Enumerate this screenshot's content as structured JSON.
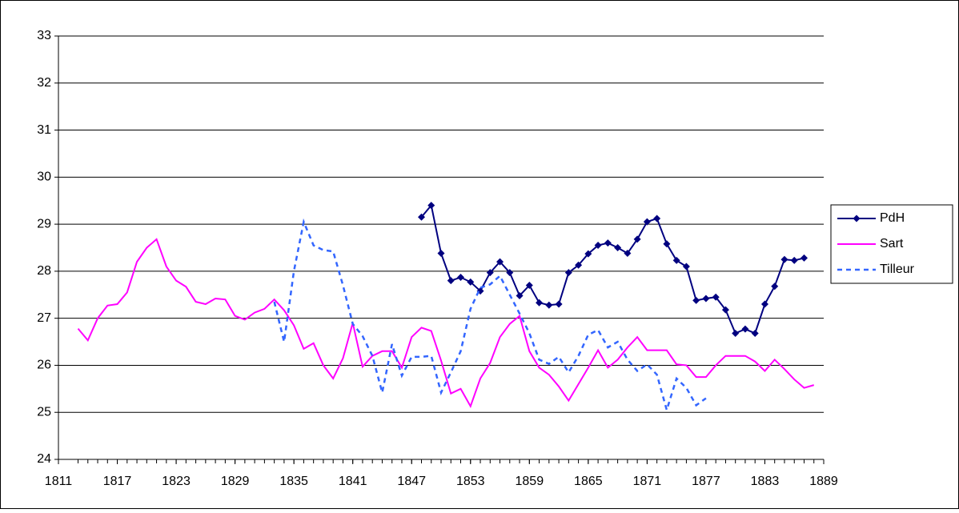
{
  "chart_data": {
    "type": "line",
    "x": [
      1813,
      1814,
      1815,
      1816,
      1817,
      1818,
      1819,
      1820,
      1821,
      1822,
      1823,
      1824,
      1825,
      1826,
      1827,
      1828,
      1829,
      1830,
      1831,
      1832,
      1833,
      1834,
      1835,
      1836,
      1837,
      1838,
      1839,
      1840,
      1841,
      1842,
      1843,
      1844,
      1845,
      1846,
      1847,
      1848,
      1849,
      1850,
      1851,
      1852,
      1853,
      1854,
      1855,
      1856,
      1857,
      1858,
      1859,
      1860,
      1861,
      1862,
      1863,
      1864,
      1865,
      1866,
      1867,
      1868,
      1869,
      1870,
      1871,
      1872,
      1873,
      1874,
      1875,
      1876,
      1877,
      1878,
      1879,
      1880,
      1881,
      1882,
      1883,
      1884,
      1885,
      1886,
      1887,
      1888
    ],
    "series": [
      {
        "name": "PdH",
        "color": "#000080",
        "marker": "diamond",
        "dashed": false,
        "values": [
          null,
          null,
          null,
          null,
          null,
          null,
          null,
          null,
          null,
          null,
          null,
          null,
          null,
          null,
          null,
          null,
          null,
          null,
          null,
          null,
          null,
          null,
          null,
          null,
          null,
          null,
          null,
          null,
          null,
          null,
          null,
          null,
          null,
          null,
          null,
          29.15,
          29.4,
          28.38,
          27.8,
          27.87,
          27.77,
          27.58,
          27.97,
          28.2,
          27.97,
          27.48,
          27.7,
          27.33,
          27.28,
          27.3,
          27.97,
          28.13,
          28.37,
          28.55,
          28.6,
          28.5,
          28.38,
          28.68,
          29.05,
          29.12,
          28.58,
          28.23,
          28.1,
          27.38,
          27.42,
          27.45,
          27.18,
          26.68,
          26.77,
          26.68,
          27.3,
          27.68,
          28.25,
          28.23,
          28.28,
          null
        ]
      },
      {
        "name": "Sart",
        "color": "#ff00ff",
        "marker": "none",
        "dashed": false,
        "values": [
          26.78,
          26.53,
          27.0,
          27.27,
          27.3,
          27.55,
          28.2,
          28.5,
          28.68,
          28.1,
          27.8,
          27.67,
          27.35,
          27.3,
          27.42,
          27.4,
          27.05,
          26.97,
          27.12,
          27.2,
          27.4,
          27.17,
          26.85,
          26.35,
          26.47,
          26.0,
          25.72,
          26.15,
          26.9,
          25.97,
          26.2,
          26.3,
          26.3,
          25.95,
          26.6,
          26.8,
          26.73,
          26.1,
          25.4,
          25.5,
          25.13,
          25.72,
          26.05,
          26.6,
          26.88,
          27.05,
          26.3,
          25.95,
          25.8,
          25.55,
          25.25,
          25.6,
          25.95,
          26.32,
          25.95,
          26.12,
          26.38,
          26.6,
          26.32,
          26.32,
          26.32,
          26.02,
          26.0,
          25.75,
          25.75,
          26.0,
          26.2,
          26.2,
          26.2,
          26.08,
          25.88,
          26.12,
          25.92,
          25.7,
          25.52,
          25.58
        ]
      },
      {
        "name": "Tilleur",
        "color": "#3366ff",
        "marker": "none",
        "dashed": true,
        "values": [
          null,
          null,
          null,
          null,
          null,
          null,
          null,
          null,
          null,
          null,
          null,
          null,
          null,
          null,
          null,
          null,
          null,
          null,
          null,
          null,
          27.35,
          26.5,
          28.0,
          29.05,
          28.55,
          28.45,
          28.42,
          27.7,
          26.88,
          26.62,
          26.2,
          25.42,
          26.45,
          25.78,
          26.18,
          26.18,
          26.2,
          25.42,
          25.85,
          26.3,
          27.2,
          27.65,
          27.72,
          27.9,
          27.5,
          27.1,
          26.68,
          26.12,
          26.03,
          26.18,
          25.85,
          26.2,
          26.65,
          26.75,
          26.38,
          26.5,
          26.12,
          25.88,
          26.02,
          25.8,
          25.05,
          25.72,
          25.52,
          25.15,
          25.3,
          null,
          null,
          null,
          null,
          null,
          null,
          null,
          null,
          null,
          null,
          null
        ]
      }
    ],
    "xlim": [
      1811,
      1889
    ],
    "xticks": [
      1811,
      1817,
      1823,
      1829,
      1835,
      1841,
      1847,
      1853,
      1859,
      1865,
      1871,
      1877,
      1883,
      1889
    ],
    "ylim": [
      24,
      33
    ],
    "yticks": [
      24,
      25,
      26,
      27,
      28,
      29,
      30,
      31,
      32,
      33
    ],
    "grid": true,
    "legend": "right"
  }
}
